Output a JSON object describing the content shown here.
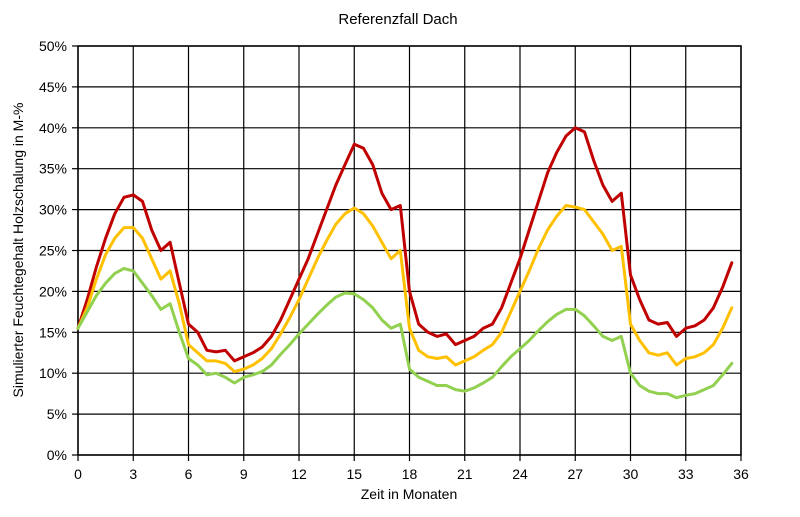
{
  "chart_data": {
    "type": "line",
    "title": "Referenzfall Dach",
    "xlabel": "Zeit in Monaten",
    "ylabel": "Simulierter Feuchtegehalt Holzschalung in M-%",
    "xlim": [
      0,
      36
    ],
    "ylim": [
      0,
      50
    ],
    "x_ticks": [
      0,
      3,
      6,
      9,
      12,
      15,
      18,
      21,
      24,
      27,
      30,
      33,
      36
    ],
    "y_ticks": [
      "0%",
      "5%",
      "10%",
      "15%",
      "20%",
      "25%",
      "30%",
      "35%",
      "40%",
      "45%",
      "50%"
    ],
    "grid": true,
    "legend": "none",
    "series": [
      {
        "color": "#c00000",
        "x": [
          0,
          0.5,
          1,
          1.5,
          2,
          2.5,
          3,
          3.5,
          4,
          4.5,
          5,
          5.5,
          6,
          6.5,
          7,
          7.5,
          8,
          8.5,
          9,
          9.5,
          10,
          10.5,
          11,
          11.5,
          12,
          12.5,
          13,
          13.5,
          14,
          14.5,
          15,
          15.5,
          16,
          16.5,
          17,
          17.5,
          18,
          18.5,
          19,
          19.5,
          20,
          20.5,
          21,
          21.5,
          22,
          22.5,
          23,
          23.5,
          24,
          24.5,
          25,
          25.5,
          26,
          26.5,
          27,
          27.5,
          28,
          28.5,
          29,
          29.5,
          30,
          30.5,
          31,
          31.5,
          32,
          32.5,
          33,
          33.5,
          34,
          34.5,
          35,
          35.5
        ],
        "values": [
          15.5,
          19,
          23,
          26.5,
          29.5,
          31.5,
          31.8,
          31,
          27.5,
          25,
          26,
          21,
          16,
          15,
          12.8,
          12.6,
          12.8,
          11.5,
          12,
          12.5,
          13.2,
          14.5,
          16.5,
          19,
          21.5,
          24,
          27,
          30,
          33,
          35.5,
          38,
          37.5,
          35.5,
          32,
          30,
          30.5,
          20,
          16,
          15,
          14.5,
          14.8,
          13.5,
          14,
          14.5,
          15.5,
          16,
          18,
          21,
          24,
          27.5,
          31,
          34.5,
          37,
          39,
          40,
          39.5,
          36,
          33,
          31,
          32,
          22,
          19,
          16.5,
          16,
          16.2,
          14.5,
          15.5,
          15.8,
          16.5,
          18,
          20.5,
          23.5
        ]
      },
      {
        "color": "#ffc000",
        "x": [
          0,
          0.5,
          1,
          1.5,
          2,
          2.5,
          3,
          3.5,
          4,
          4.5,
          5,
          5.5,
          6,
          6.5,
          7,
          7.5,
          8,
          8.5,
          9,
          9.5,
          10,
          10.5,
          11,
          11.5,
          12,
          12.5,
          13,
          13.5,
          14,
          14.5,
          15,
          15.5,
          16,
          16.5,
          17,
          17.5,
          18,
          18.5,
          19,
          19.5,
          20,
          20.5,
          21,
          21.5,
          22,
          22.5,
          23,
          23.5,
          24,
          24.5,
          25,
          25.5,
          26,
          26.5,
          27,
          27.5,
          28,
          28.5,
          29,
          29.5,
          30,
          30.5,
          31,
          31.5,
          32,
          32.5,
          33,
          33.5,
          34,
          34.5,
          35,
          35.5
        ],
        "values": [
          15.5,
          18,
          21.5,
          24.5,
          26.5,
          27.8,
          27.8,
          26.5,
          24,
          21.5,
          22.5,
          18.5,
          13.5,
          12.5,
          11.5,
          11.5,
          11.2,
          10.2,
          10.5,
          11,
          11.8,
          13,
          14.8,
          16.8,
          19,
          21.5,
          24,
          26.2,
          28.2,
          29.5,
          30.2,
          29.5,
          28,
          26,
          24,
          25,
          15.5,
          12.8,
          12,
          11.8,
          12,
          11,
          11.5,
          12,
          12.8,
          13.5,
          15,
          17.5,
          20,
          22.5,
          25.2,
          27.5,
          29.2,
          30.5,
          30.3,
          30,
          28.5,
          27,
          25,
          25.5,
          16,
          14,
          12.5,
          12.2,
          12.5,
          11,
          11.8,
          12,
          12.5,
          13.5,
          15.5,
          18
        ]
      },
      {
        "color": "#92d050",
        "x": [
          0,
          0.5,
          1,
          1.5,
          2,
          2.5,
          3,
          3.5,
          4,
          4.5,
          5,
          5.5,
          6,
          6.5,
          7,
          7.5,
          8,
          8.5,
          9,
          9.5,
          10,
          10.5,
          11,
          11.5,
          12,
          12.5,
          13,
          13.5,
          14,
          14.5,
          15,
          15.5,
          16,
          16.5,
          17,
          17.5,
          18,
          18.5,
          19,
          19.5,
          20,
          20.5,
          21,
          21.5,
          22,
          22.5,
          23,
          23.5,
          24,
          24.5,
          25,
          25.5,
          26,
          26.5,
          27,
          27.5,
          28,
          28.5,
          29,
          29.5,
          30,
          30.5,
          31,
          31.5,
          32,
          32.5,
          33,
          33.5,
          34,
          34.5,
          35,
          35.5
        ],
        "values": [
          15.5,
          17.5,
          19.5,
          21,
          22.2,
          22.8,
          22.5,
          21,
          19.5,
          17.8,
          18.5,
          15,
          11.8,
          11,
          9.8,
          10,
          9.5,
          8.8,
          9.5,
          9.8,
          10.2,
          11,
          12.3,
          13.5,
          14.8,
          16,
          17.2,
          18.3,
          19.3,
          19.8,
          19.7,
          19,
          18,
          16.5,
          15.5,
          16,
          10.5,
          9.5,
          9,
          8.5,
          8.5,
          8,
          7.8,
          8.2,
          8.8,
          9.5,
          10.8,
          12,
          13,
          14,
          15.2,
          16.3,
          17.2,
          17.8,
          17.8,
          17,
          15.8,
          14.5,
          14,
          14.5,
          10,
          8.5,
          7.8,
          7.5,
          7.5,
          7,
          7.3,
          7.5,
          8,
          8.5,
          9.8,
          11.2
        ]
      }
    ]
  }
}
